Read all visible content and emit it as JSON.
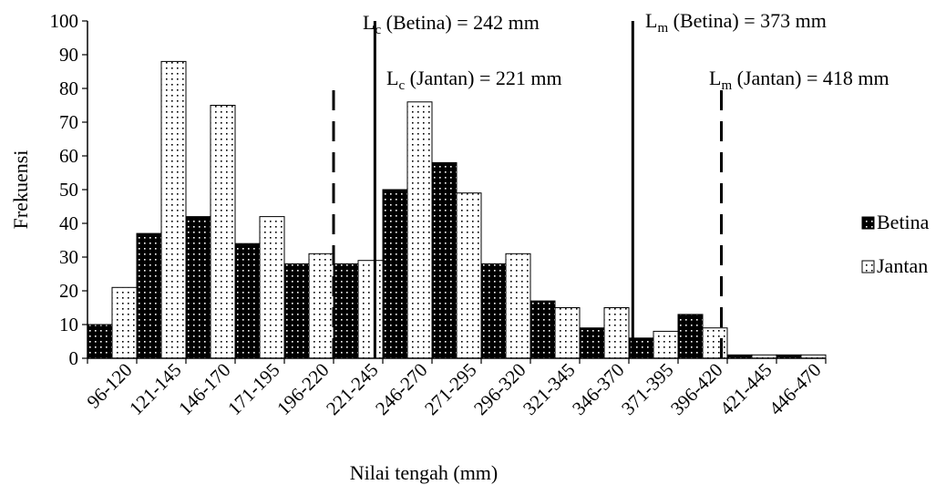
{
  "chart_data": {
    "type": "bar",
    "title": "",
    "xlabel": "Nilai tengah (mm)",
    "ylabel": "Frekuensi",
    "ylim": [
      0,
      100
    ],
    "yticks": [
      0,
      10,
      20,
      30,
      40,
      50,
      60,
      70,
      80,
      90,
      100
    ],
    "grid": false,
    "legend_position": "right",
    "categories": [
      "96-120",
      "121-145",
      "146-170",
      "171-195",
      "196-220",
      "221-245",
      "246-270",
      "271-295",
      "296-320",
      "321-345",
      "346-370",
      "371-395",
      "396-420",
      "421-445",
      "446-470"
    ],
    "series": [
      {
        "name": "Betina",
        "pattern": "dark-dotted",
        "color": "#000000",
        "values": [
          10,
          37,
          42,
          34,
          28,
          28,
          50,
          58,
          28,
          17,
          9,
          6,
          13,
          1,
          1
        ]
      },
      {
        "name": "Jantan",
        "pattern": "light-dotted",
        "color": "#ffffff",
        "values": [
          21,
          88,
          75,
          42,
          31,
          29,
          76,
          49,
          31,
          15,
          15,
          8,
          9,
          1,
          1
        ]
      }
    ],
    "annotations": [
      {
        "label_main": "L",
        "label_sub": "c",
        "label_rest": " (Betina) = 242 mm",
        "x_value": 242,
        "line_style": "solid",
        "line_top": 100
      },
      {
        "label_main": "L",
        "label_sub": "c",
        "label_rest": " (Jantan) = 221 mm",
        "x_value": 221,
        "line_style": "dashed",
        "line_top": 80
      },
      {
        "label_main": "L",
        "label_sub": "m",
        "label_rest": " (Betina) = 373 mm",
        "x_value": 373,
        "line_style": "solid",
        "line_top": 100
      },
      {
        "label_main": "L",
        "label_sub": "m",
        "label_rest": " (Jantan) = 418 mm",
        "x_value": 418,
        "line_style": "dashed",
        "line_top": 80
      }
    ]
  }
}
